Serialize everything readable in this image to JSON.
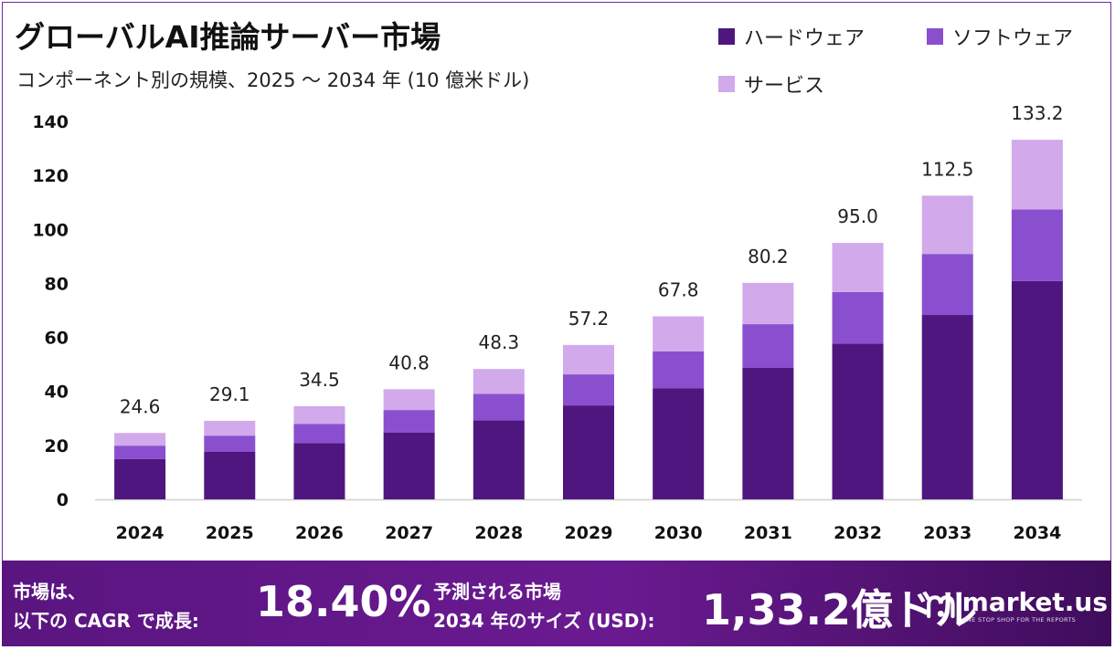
{
  "header": {
    "title": "グローバルAI推論サーバー市場",
    "subtitle": "コンポーネント別の規模、2025 〜 2034 年 (10 億米ドル)"
  },
  "legend": [
    {
      "label": "ハードウェア",
      "color": "#4f1680"
    },
    {
      "label": "ソフトウェア",
      "color": "#8a4fcf"
    },
    {
      "label": "サービス",
      "color": "#d2a9ea"
    }
  ],
  "chart_data": {
    "type": "bar",
    "stacked": true,
    "categories": [
      "2024",
      "2025",
      "2026",
      "2027",
      "2028",
      "2029",
      "2030",
      "2031",
      "2032",
      "2033",
      "2034"
    ],
    "series": [
      {
        "name": "ハードウェア",
        "color": "#4f1680",
        "values": [
          14.9,
          17.7,
          20.9,
          24.8,
          29.3,
          34.8,
          41.2,
          48.7,
          57.7,
          68.3,
          80.9
        ]
      },
      {
        "name": "ソフトウェア",
        "color": "#8a4fcf",
        "values": [
          5.0,
          5.9,
          7.0,
          8.3,
          9.8,
          11.5,
          13.6,
          16.2,
          19.1,
          22.6,
          26.5
        ]
      },
      {
        "name": "サービス",
        "color": "#d2a9ea",
        "values": [
          4.7,
          5.5,
          6.6,
          7.7,
          9.2,
          10.9,
          13.0,
          15.3,
          18.2,
          21.6,
          25.8
        ]
      }
    ],
    "totals": [
      "24.6",
      "29.1",
      "34.5",
      "40.8",
      "48.3",
      "57.2",
      "67.8",
      "80.2",
      "95.0",
      "112.5",
      "133.2"
    ],
    "yticks": [
      "0",
      "20",
      "40",
      "60",
      "80",
      "100",
      "120",
      "140"
    ],
    "ylim": [
      0,
      140
    ],
    "grid": false
  },
  "footer": {
    "line1": "市場は、",
    "line2": "以下の CAGR で成長:",
    "cagr": "18.40%",
    "right1": "予測される市場",
    "right2": "2034 年のサイズ (USD):",
    "size": "1,33.2億ドル",
    "brand": "market.us",
    "tagline": "ONE STOP SHOP FOR THE REPORTS"
  }
}
